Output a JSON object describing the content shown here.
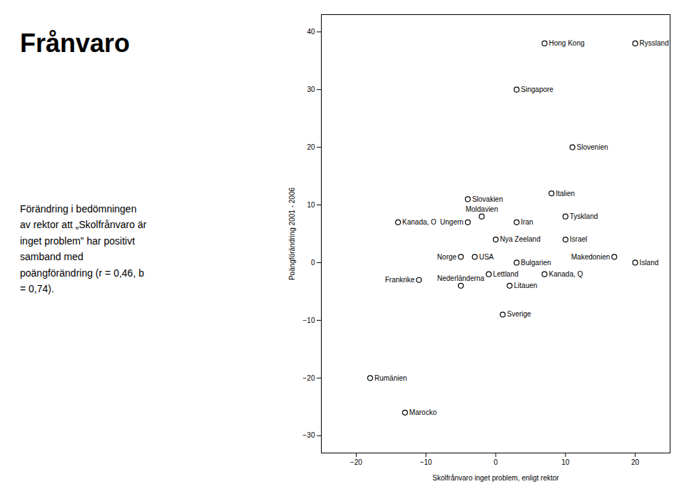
{
  "chart_data": {
    "type": "scatter",
    "title": "Frånvaro",
    "annotations": [
      "Förändring i bedömningen\nav rektor att „Skolfrånvaro är\ninget problem” har positivt\nsamband med\npoängförändring (r = 0,46, b\n= 0,74)."
    ],
    "xlabel": "Skolfrånvaro inget problem, enligt rektor",
    "ylabel": "Poängförändring 2001 - 2006",
    "xlim": [
      -25,
      25
    ],
    "ylim": [
      -33,
      43
    ],
    "xticks": [
      -20,
      -10,
      0,
      10,
      20
    ],
    "yticks": [
      -30,
      -20,
      -10,
      0,
      10,
      20,
      30,
      40
    ],
    "grid": false,
    "points": [
      {
        "label": "Hong Kong",
        "x": 7,
        "y": 38
      },
      {
        "label": "Ryssland",
        "x": 20,
        "y": 38
      },
      {
        "label": "Singapore",
        "x": 3,
        "y": 30
      },
      {
        "label": "Slovenien",
        "x": 11,
        "y": 20
      },
      {
        "label": "Slovakien",
        "x": -4,
        "y": 11
      },
      {
        "label": "Italien",
        "x": 8,
        "y": 12
      },
      {
        "label": "Moldavien",
        "x": -2,
        "y": 8
      },
      {
        "label": "Tyskland",
        "x": 10,
        "y": 8
      },
      {
        "label": "Ungern",
        "x": -4,
        "y": 7
      },
      {
        "label": "Iran",
        "x": 3,
        "y": 7
      },
      {
        "label": "Israel",
        "x": 10,
        "y": 4
      },
      {
        "label": "Nya Zeeland",
        "x": 0,
        "y": 4
      },
      {
        "label": "Norge",
        "x": -5,
        "y": 1
      },
      {
        "label": "USA",
        "x": -3,
        "y": 1
      },
      {
        "label": "Makedonien",
        "x": 17,
        "y": 1
      },
      {
        "label": "Bulgarien",
        "x": 3,
        "y": 0
      },
      {
        "label": "Island",
        "x": 20,
        "y": 0
      },
      {
        "label": "Lettland",
        "x": -1,
        "y": -2
      },
      {
        "label": "Kanada, Q",
        "x": 7,
        "y": -2
      },
      {
        "label": "Nederländerna",
        "x": -5,
        "y": -4
      },
      {
        "label": "Litauen",
        "x": 2,
        "y": -4
      },
      {
        "label": "Sverige",
        "x": 1,
        "y": -9
      },
      {
        "label": "Kanada, O",
        "x": -14,
        "y": 7
      },
      {
        "label": "Frankrike",
        "x": -11,
        "y": -3
      },
      {
        "label": "Rumänien",
        "x": -18,
        "y": -20
      },
      {
        "label": "Marocko",
        "x": -13,
        "y": -26
      }
    ]
  }
}
